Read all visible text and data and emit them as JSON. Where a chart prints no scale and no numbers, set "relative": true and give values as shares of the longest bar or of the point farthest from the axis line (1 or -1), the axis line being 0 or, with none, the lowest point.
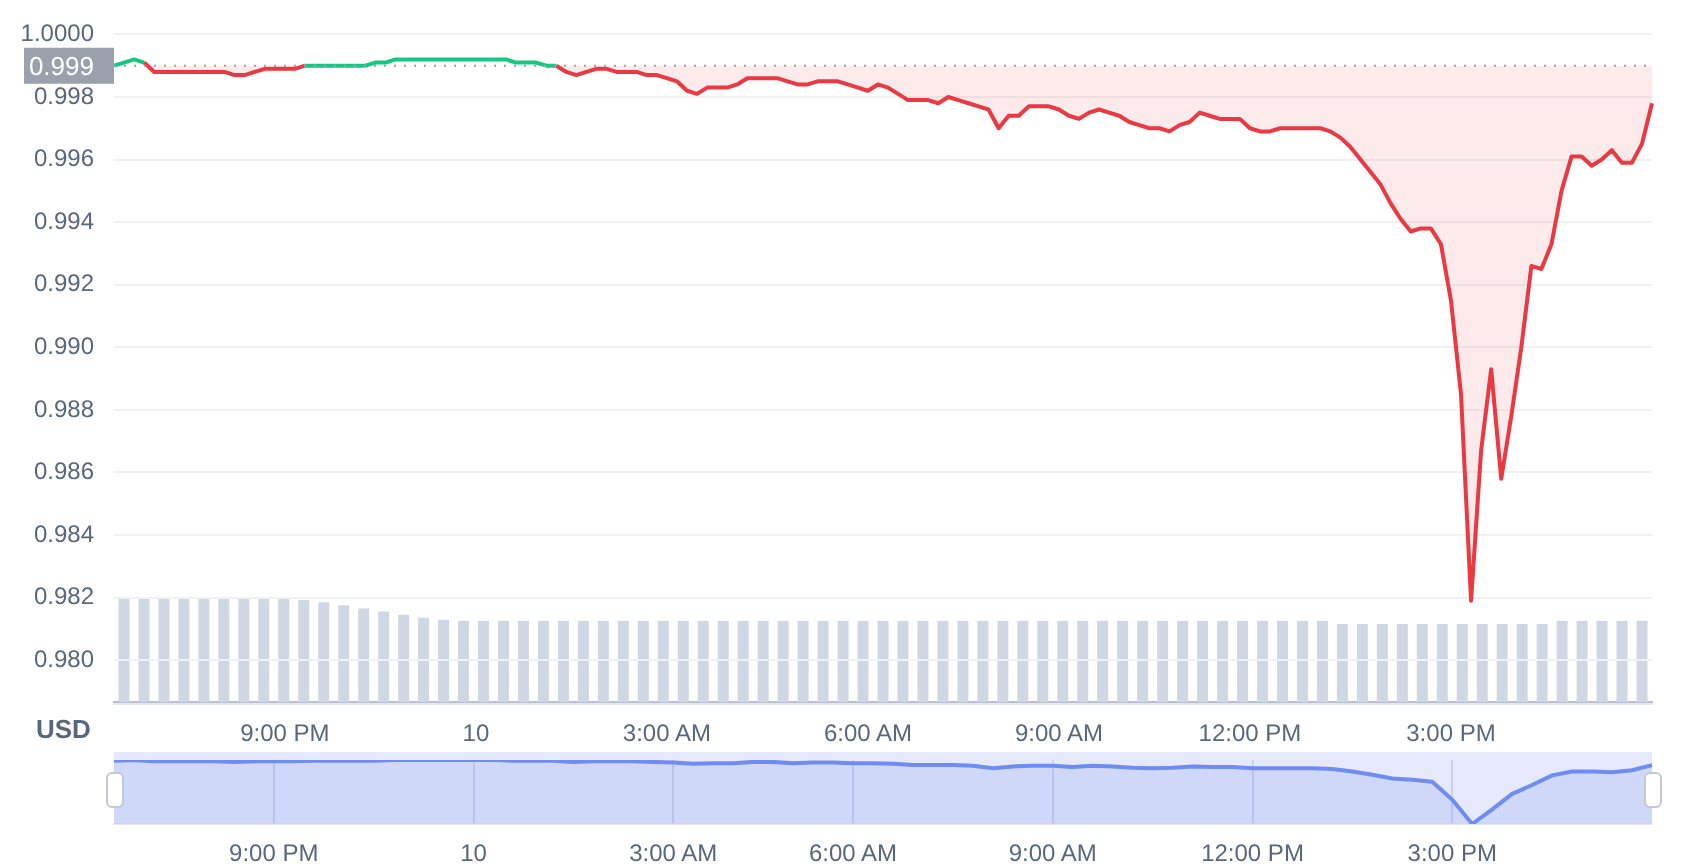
{
  "chart_data": [
    {
      "type": "line",
      "ylabel": "USD",
      "categories": [
        null,
        null,
        null,
        null,
        null,
        null,
        null,
        null,
        null,
        null,
        null,
        null,
        null,
        null,
        null,
        null,
        null,
        "9:00 PM",
        null,
        null,
        null,
        null,
        null,
        null,
        null,
        null,
        null,
        null,
        null,
        null,
        null,
        null,
        null,
        null,
        null,
        null,
        "10",
        null,
        null,
        null,
        null,
        null,
        null,
        null,
        null,
        null,
        null,
        null,
        null,
        null,
        null,
        null,
        null,
        null,
        null,
        "3:00 AM",
        null,
        null,
        null,
        null,
        null,
        null,
        null,
        null,
        null,
        null,
        null,
        null,
        null,
        null,
        null,
        null,
        null,
        null,
        null,
        "6:00 AM",
        null,
        null,
        null,
        null,
        null,
        null,
        null,
        null,
        null,
        null,
        null,
        null,
        null,
        null,
        null,
        null,
        null,
        null,
        "9:00 AM",
        null,
        null,
        null,
        null,
        null,
        null,
        null,
        null,
        null,
        null,
        null,
        null,
        null,
        null,
        null,
        null,
        null,
        null,
        "12:00 PM",
        null,
        null,
        null,
        null,
        null,
        null,
        null,
        null,
        null,
        null,
        null,
        null,
        null,
        null,
        null,
        null,
        null,
        null,
        null,
        "3:00 PM",
        null,
        null,
        null,
        null,
        null,
        null,
        null,
        null,
        null,
        null,
        null,
        null,
        null,
        null,
        null,
        null,
        null,
        null,
        null,
        null
      ],
      "series": [
        {
          "color": "#16c784",
          "values": [
            0.999,
            0.9991,
            0.9992,
            0.9991,
            null,
            null,
            null,
            null,
            null,
            null,
            null,
            null,
            null,
            null,
            null,
            null,
            null,
            null,
            null,
            0.999,
            0.999,
            0.999,
            0.999,
            0.999,
            0.999,
            0.999,
            0.9991,
            0.9991,
            0.9992,
            0.9992,
            0.9992,
            0.9992,
            0.9992,
            0.9992,
            0.9992,
            0.9992,
            0.9992,
            0.9992,
            0.9992,
            0.9992,
            0.9991,
            0.9991,
            0.9991,
            0.999,
            0.999,
            null,
            null,
            null,
            null,
            null,
            null,
            null,
            null,
            null,
            null,
            null,
            null,
            null,
            null,
            null,
            null,
            null,
            null,
            null,
            null,
            null,
            null,
            null,
            null,
            null,
            null,
            null,
            null,
            null,
            null,
            null,
            null,
            null,
            null,
            null,
            null,
            null,
            null,
            null,
            null,
            null,
            null,
            null,
            null,
            null,
            null,
            null,
            null,
            null,
            null,
            null,
            null,
            null,
            null,
            null,
            null,
            null,
            null,
            null,
            null,
            null,
            null,
            null,
            null,
            null,
            null,
            null,
            null,
            null,
            null,
            null,
            null,
            null,
            null,
            null,
            null,
            null,
            null,
            null,
            null,
            null,
            null,
            null,
            null,
            null,
            null,
            null,
            null,
            null,
            null,
            null,
            null,
            null,
            null,
            null,
            null,
            null,
            null,
            null,
            null,
            null,
            null,
            null,
            null,
            null,
            null,
            null,
            null,
            null
          ]
        },
        {
          "color": "#ea3943",
          "values": [
            null,
            null,
            null,
            0.9991,
            0.9988,
            0.9988,
            0.9988,
            0.9988,
            0.9988,
            0.9988,
            0.9988,
            0.9988,
            0.9987,
            0.9987,
            0.9988,
            0.9989,
            0.9989,
            0.9989,
            0.9989,
            0.999,
            null,
            null,
            null,
            null,
            null,
            null,
            null,
            null,
            null,
            null,
            null,
            null,
            null,
            null,
            null,
            null,
            null,
            null,
            null,
            null,
            null,
            null,
            null,
            null,
            0.999,
            0.9988,
            0.9987,
            0.9988,
            0.9989,
            0.9989,
            0.9988,
            0.9988,
            0.9988,
            0.9987,
            0.9987,
            0.9986,
            0.9985,
            0.9982,
            0.9981,
            0.9983,
            0.9983,
            0.9983,
            0.9984,
            0.9986,
            0.9986,
            0.9986,
            0.9986,
            0.9985,
            0.9984,
            0.9984,
            0.9985,
            0.9985,
            0.9985,
            0.9984,
            0.9983,
            0.9982,
            0.9984,
            0.9983,
            0.9981,
            0.9979,
            0.9979,
            0.9979,
            0.9978,
            0.998,
            0.9979,
            0.9978,
            0.9977,
            0.9976,
            0.997,
            0.9974,
            0.9974,
            0.9977,
            0.9977,
            0.9977,
            0.9976,
            0.9974,
            0.9973,
            0.9975,
            0.9976,
            0.9975,
            0.9974,
            0.9972,
            0.9971,
            0.997,
            0.997,
            0.9969,
            0.9971,
            0.9972,
            0.9975,
            0.9974,
            0.9973,
            0.9973,
            0.9973,
            0.997,
            0.9969,
            0.9969,
            0.997,
            0.997,
            0.997,
            0.997,
            0.997,
            0.9969,
            0.9967,
            0.9964,
            0.996,
            0.9956,
            0.9952,
            0.9946,
            0.9941,
            0.9937,
            0.9938,
            0.9938,
            0.9933,
            0.9915,
            0.9885,
            0.9819,
            0.9867,
            0.9893,
            0.9858,
            0.9878,
            0.99,
            0.9926,
            0.9925,
            0.9933,
            0.995,
            0.9961,
            0.9961,
            0.9958,
            0.996,
            0.9963,
            0.9959,
            0.9959,
            0.9965,
            0.9978
          ]
        }
      ],
      "ylim": [
        0.9786,
        1.0
      ],
      "yticks": [
        {
          "value": 0.98,
          "label": "0.980"
        },
        0.982,
        0.984,
        0.986,
        0.988,
        {
          "value": 0.99,
          "label": "0.990"
        },
        0.992,
        0.994,
        0.996,
        0.998,
        {
          "value": 1.0,
          "label": "1.0000"
        }
      ],
      "ref_lines": [
        {
          "axis": "y",
          "value": 0.999,
          "label": "0.999",
          "color": "#9aa1ac",
          "line_style": "dotted"
        }
      ],
      "grid": "y"
    },
    {
      "type": "bar",
      "relative": true,
      "tick_labels": false,
      "color": "#cfd6e4",
      "categories": [
        null,
        null,
        null,
        null,
        null,
        null,
        null,
        null,
        null,
        null,
        null,
        null,
        null,
        null,
        null,
        null,
        null,
        null,
        null,
        null,
        null,
        null,
        null,
        null,
        null,
        null,
        null,
        null,
        null,
        null,
        null,
        null,
        null,
        null,
        null,
        null,
        null,
        null,
        null,
        null,
        null,
        null,
        null,
        null,
        null,
        null,
        null,
        null,
        null,
        null,
        null,
        null,
        null,
        null,
        null,
        null,
        null,
        null,
        null,
        null,
        null,
        null,
        null,
        null,
        null,
        null,
        null,
        null,
        null,
        null,
        null,
        null,
        null,
        null,
        null,
        null,
        null
      ],
      "values": [
        1,
        1,
        1,
        1,
        1,
        1,
        1,
        1,
        1,
        0.98,
        0.96,
        0.93,
        0.9,
        0.87,
        0.84,
        0.81,
        0.79,
        0.78,
        0.78,
        0.78,
        0.78,
        0.78,
        0.78,
        0.78,
        0.78,
        0.78,
        0.78,
        0.78,
        0.78,
        0.78,
        0.78,
        0.78,
        0.78,
        0.78,
        0.78,
        0.78,
        0.78,
        0.78,
        0.78,
        0.78,
        0.78,
        0.78,
        0.78,
        0.78,
        0.78,
        0.78,
        0.78,
        0.78,
        0.78,
        0.78,
        0.78,
        0.78,
        0.78,
        0.78,
        0.78,
        0.78,
        0.78,
        0.78,
        0.78,
        0.78,
        0.78,
        0.75,
        0.75,
        0.75,
        0.75,
        0.75,
        0.75,
        0.75,
        0.75,
        0.75,
        0.75,
        0.75,
        0.78,
        0.78,
        0.78,
        0.78,
        0.78
      ]
    },
    {
      "type": "area",
      "relative": true,
      "tick_labels": "x",
      "grid": "x",
      "color": "#6f8cf2",
      "categories": [
        null,
        null,
        null,
        null,
        null,
        null,
        null,
        null,
        "9:00 PM",
        null,
        null,
        null,
        null,
        null,
        null,
        null,
        null,
        null,
        "10",
        null,
        null,
        null,
        null,
        null,
        null,
        null,
        null,
        null,
        "3:00 AM",
        null,
        null,
        null,
        null,
        null,
        null,
        null,
        null,
        "6:00 AM",
        null,
        null,
        null,
        null,
        null,
        null,
        null,
        null,
        null,
        "9:00 AM",
        null,
        null,
        null,
        null,
        null,
        null,
        null,
        null,
        null,
        "12:00 PM",
        null,
        null,
        null,
        null,
        null,
        null,
        null,
        null,
        null,
        "3:00 PM",
        null,
        null,
        null,
        null,
        null,
        null,
        null,
        null,
        null,
        null
      ],
      "values": [
        0.99,
        1,
        0.98,
        0.98,
        0.98,
        0.98,
        0.97,
        0.98,
        0.98,
        0.98,
        0.99,
        0.99,
        0.99,
        0.99,
        1,
        1,
        1,
        1,
        1,
        1,
        0.99,
        0.99,
        0.99,
        0.97,
        0.98,
        0.98,
        0.98,
        0.97,
        0.96,
        0.94,
        0.95,
        0.95,
        0.97,
        0.97,
        0.95,
        0.96,
        0.96,
        0.95,
        0.95,
        0.94,
        0.92,
        0.92,
        0.92,
        0.91,
        0.87,
        0.9,
        0.91,
        0.91,
        0.89,
        0.91,
        0.9,
        0.88,
        0.87,
        0.88,
        0.9,
        0.89,
        0.89,
        0.87,
        0.87,
        0.87,
        0.87,
        0.86,
        0.82,
        0.77,
        0.71,
        0.69,
        0.66,
        0.38,
        0,
        0.23,
        0.47,
        0.61,
        0.76,
        0.82,
        0.82,
        0.81,
        0.84,
        0.92
      ]
    }
  ]
}
